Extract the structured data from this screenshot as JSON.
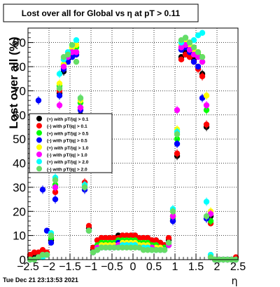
{
  "title": "Lost over all for Global vs   η at pT > 0.11",
  "timestamp": "Tue Dec 21 23:13:53 2021",
  "chart_data": {
    "type": "scatter",
    "title": "Lost over all for Global vs   η at pT > 0.11",
    "xlabel": "η",
    "ylabel": "Lost over all (%)",
    "xlim": [
      -2.5,
      2.5
    ],
    "ylim": [
      0,
      96
    ],
    "grid": true,
    "legend_placement": "middle-left",
    "x_ticks": [
      "−2.5",
      "−2",
      "−1.5",
      "−1",
      "−0.5",
      "0",
      "0.5",
      "1",
      "1.5",
      "2",
      "2.5"
    ],
    "y_ticks": [
      "0",
      "10",
      "20",
      "30",
      "40",
      "50",
      "60",
      "70",
      "80",
      "90"
    ],
    "x": [
      -2.45,
      -2.35,
      -2.25,
      -2.15,
      -2.05,
      -1.95,
      -1.85,
      -1.75,
      -1.65,
      -1.55,
      -1.45,
      -1.35,
      -1.25,
      -1.15,
      -1.05,
      -0.95,
      -0.85,
      -0.75,
      -0.65,
      -0.55,
      -0.45,
      -0.35,
      -0.25,
      -0.15,
      -0.05,
      0.05,
      0.15,
      0.25,
      0.35,
      0.45,
      0.55,
      0.65,
      0.75,
      0.85,
      0.95,
      1.05,
      1.15,
      1.25,
      1.35,
      1.45,
      1.55,
      1.65,
      1.75,
      1.85,
      1.95,
      2.05,
      2.15,
      2.25,
      2.35,
      2.45
    ],
    "series": [
      {
        "name": "(+) with pT/|q| > 0.1",
        "color": "#000000",
        "values": [
          1,
          2,
          2,
          3,
          2,
          8,
          30,
          69,
          78,
          83,
          86,
          86,
          60,
          30,
          13,
          4,
          8,
          9,
          9,
          9,
          9,
          10,
          10,
          10,
          10,
          10,
          9,
          9,
          9,
          8,
          8,
          7,
          6,
          8,
          16,
          43,
          84,
          86,
          85,
          83,
          80,
          77,
          55,
          18,
          0,
          0,
          0,
          0,
          0,
          0
        ]
      },
      {
        "name": "(-) with pT/|q| > 0.1",
        "color": "#ff0000",
        "values": [
          2,
          3,
          3,
          4,
          3,
          10,
          28,
          70,
          80,
          84,
          86,
          85,
          63,
          32,
          14,
          5,
          8,
          9,
          9,
          9,
          9,
          9,
          10,
          10,
          10,
          10,
          9,
          9,
          9,
          8,
          8,
          7,
          6,
          9,
          18,
          44,
          83,
          85,
          84,
          82,
          79,
          76,
          56,
          15,
          0,
          0,
          0,
          0,
          0,
          1
        ]
      },
      {
        "name": "(+) with pT/|q| > 0.5",
        "color": "#00ff00",
        "values": [
          0,
          0,
          1,
          2,
          2,
          9,
          31,
          72,
          80,
          84,
          88,
          88,
          65,
          30,
          12,
          3,
          6,
          7,
          7,
          7,
          7,
          8,
          8,
          8,
          8,
          8,
          7,
          7,
          7,
          6,
          6,
          5,
          5,
          7,
          17,
          50,
          88,
          90,
          88,
          86,
          85,
          82,
          62,
          16,
          0,
          0,
          0,
          0,
          0,
          0
        ]
      },
      {
        "name": "(-) with pT/|q| > 0.5",
        "color": "#0000ff",
        "values": [
          0,
          0,
          66,
          29,
          12,
          7,
          25,
          68,
          79,
          82,
          84,
          85,
          62,
          29,
          12,
          3,
          5,
          6,
          6,
          6,
          6,
          7,
          7,
          7,
          7,
          7,
          6,
          6,
          6,
          5,
          5,
          5,
          4,
          6,
          16,
          48,
          87,
          88,
          86,
          82,
          80,
          67,
          17,
          1,
          0,
          0,
          0,
          0,
          0,
          0
        ]
      },
      {
        "name": "(+) with pT/|q| > 1.0",
        "color": "#ffff00",
        "values": [
          0,
          0,
          1,
          1,
          2,
          10,
          33,
          73,
          81,
          85,
          88,
          89,
          66,
          31,
          12,
          3,
          5,
          6,
          6,
          6,
          6,
          6,
          7,
          7,
          7,
          7,
          6,
          6,
          6,
          5,
          5,
          5,
          4,
          7,
          20,
          54,
          89,
          91,
          89,
          87,
          86,
          84,
          68,
          20,
          0,
          0,
          0,
          0,
          0,
          0
        ]
      },
      {
        "name": "(-) with pT/|q| > 1.0",
        "color": "#ff00ff",
        "values": [
          0,
          0,
          1,
          2,
          2,
          10,
          30,
          64,
          80,
          84,
          86,
          86,
          63,
          30,
          12,
          3,
          5,
          5,
          5,
          5,
          5,
          6,
          6,
          6,
          6,
          6,
          5,
          5,
          5,
          5,
          4,
          4,
          4,
          6,
          18,
          62,
          88,
          89,
          87,
          85,
          84,
          82,
          64,
          19,
          0,
          0,
          0,
          0,
          0,
          0
        ]
      },
      {
        "name": "(+) with pT/|q| > 2.0",
        "color": "#00ffff",
        "values": [
          0,
          0,
          1,
          1,
          2,
          11,
          34,
          77,
          83,
          86,
          89,
          91,
          67,
          31,
          12,
          3,
          4,
          5,
          5,
          5,
          5,
          5,
          6,
          6,
          6,
          6,
          5,
          5,
          5,
          4,
          4,
          4,
          4,
          7,
          21,
          53,
          90,
          92,
          90,
          91,
          93,
          94,
          24,
          2,
          0,
          0,
          0,
          0,
          0,
          0
        ]
      },
      {
        "name": "(-) with pT/|q| > 2.0",
        "color": "#66dd66",
        "values": [
          0,
          0,
          1,
          2,
          2,
          10,
          33,
          71,
          84,
          85,
          89,
          82,
          67,
          30,
          12,
          3,
          4,
          5,
          5,
          5,
          5,
          5,
          5,
          5,
          5,
          5,
          5,
          4,
          4,
          4,
          4,
          4,
          4,
          7,
          20,
          52,
          91,
          92,
          90,
          88,
          86,
          84,
          18,
          1,
          0,
          0,
          0,
          0,
          0,
          0
        ]
      }
    ]
  }
}
